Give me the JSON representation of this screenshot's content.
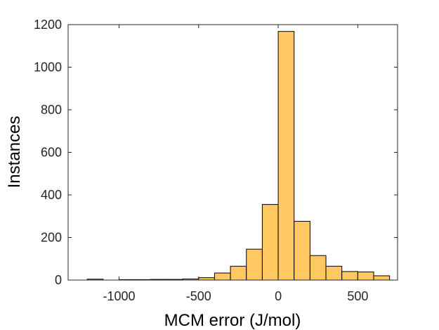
{
  "chart_data": {
    "type": "bar",
    "title": "",
    "xlabel": "MCM error (J/mol)",
    "ylabel": "Instances",
    "xlim": [
      -1320,
      750
    ],
    "ylim": [
      0,
      1200
    ],
    "x_ticks": [
      -1000,
      -500,
      0,
      500
    ],
    "x_tick_labels": [
      "-1000",
      "-500",
      "0",
      "500"
    ],
    "y_ticks": [
      0,
      200,
      400,
      600,
      800,
      1000,
      1200
    ],
    "y_tick_labels": [
      "0",
      "200",
      "400",
      "600",
      "800",
      "1000",
      "1200"
    ],
    "grid": false,
    "legend": "none",
    "bin_width": 100,
    "bins": [
      {
        "left": -1200,
        "right": -1100,
        "count": 4
      },
      {
        "left": -1100,
        "right": -1000,
        "count": 0
      },
      {
        "left": -1000,
        "right": -900,
        "count": 2
      },
      {
        "left": -900,
        "right": -800,
        "count": 2
      },
      {
        "left": -800,
        "right": -700,
        "count": 3
      },
      {
        "left": -700,
        "right": -600,
        "count": 3
      },
      {
        "left": -600,
        "right": -500,
        "count": 5
      },
      {
        "left": -500,
        "right": -400,
        "count": 11
      },
      {
        "left": -400,
        "right": -300,
        "count": 33
      },
      {
        "left": -300,
        "right": -200,
        "count": 65
      },
      {
        "left": -200,
        "right": -100,
        "count": 145
      },
      {
        "left": -100,
        "right": 0,
        "count": 355
      },
      {
        "left": 0,
        "right": 100,
        "count": 1168
      },
      {
        "left": 100,
        "right": 200,
        "count": 276
      },
      {
        "left": 200,
        "right": 300,
        "count": 115
      },
      {
        "left": 300,
        "right": 400,
        "count": 65
      },
      {
        "left": 400,
        "right": 500,
        "count": 40
      },
      {
        "left": 500,
        "right": 600,
        "count": 38
      },
      {
        "left": 600,
        "right": 700,
        "count": 20
      }
    ],
    "colors": {
      "bar_fill": "#FFC861",
      "bar_edge": "#000000",
      "axis": "#262626"
    }
  }
}
